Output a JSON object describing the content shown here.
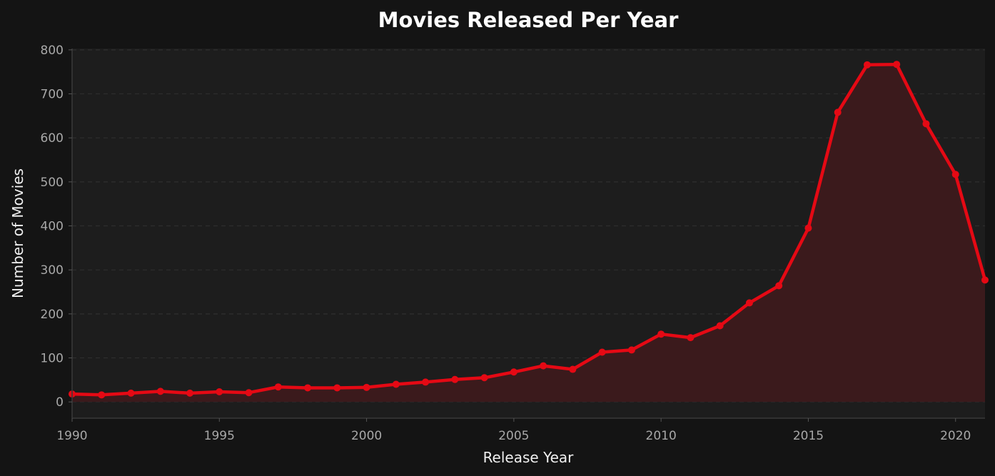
{
  "chart_data": {
    "type": "area",
    "title": "Movies Released Per Year",
    "xlabel": "Release Year",
    "ylabel": "Number of Movies",
    "x": [
      1990,
      1991,
      1992,
      1993,
      1994,
      1995,
      1996,
      1997,
      1998,
      1999,
      2000,
      2001,
      2002,
      2003,
      2004,
      2005,
      2006,
      2007,
      2008,
      2009,
      2010,
      2011,
      2012,
      2013,
      2014,
      2015,
      2016,
      2017,
      2018,
      2019,
      2020,
      2021
    ],
    "y": [
      18,
      16,
      20,
      24,
      20,
      23,
      21,
      34,
      32,
      32,
      33,
      40,
      45,
      51,
      55,
      68,
      82,
      74,
      113,
      118,
      154,
      146,
      173,
      225,
      264,
      395,
      658,
      766,
      767,
      632,
      517,
      277
    ],
    "xlim": [
      1990,
      2021
    ],
    "ylim": [
      -37,
      803
    ],
    "xticks": [
      "1990",
      "1995",
      "2000",
      "2005",
      "2010",
      "2015",
      "2020"
    ],
    "yticks": [
      "0",
      "100",
      "200",
      "300",
      "400",
      "500",
      "600",
      "700",
      "800"
    ],
    "grid": true,
    "colors": {
      "line": "#e50914",
      "fill": "#3b1a1c",
      "background": "#141414",
      "plot_background": "#1d1d1d"
    }
  }
}
